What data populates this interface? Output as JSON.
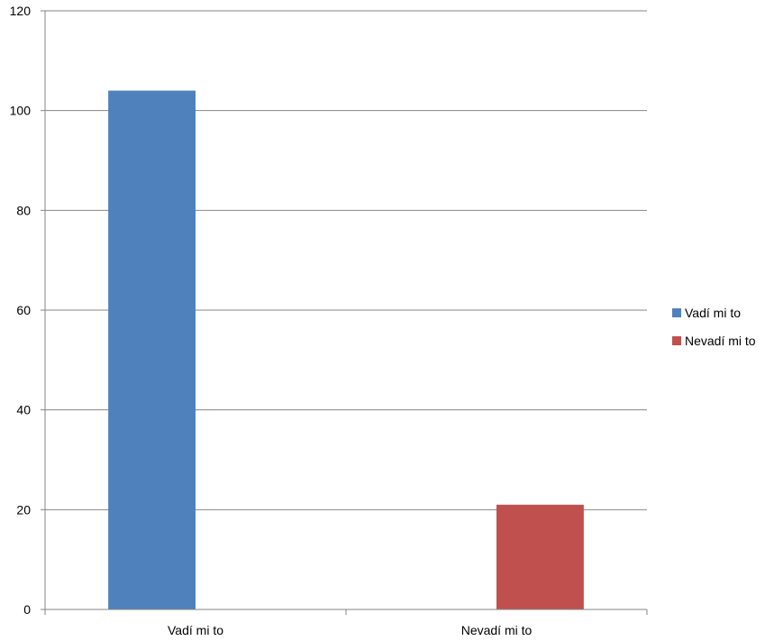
{
  "chart_data": {
    "type": "bar",
    "categories": [
      "Vadí mi to",
      "Nevadí mi to"
    ],
    "series": [
      {
        "name": "Vadí mi to",
        "values": [
          104,
          null
        ],
        "color": "#4F81BD"
      },
      {
        "name": "Nevadí mi to",
        "values": [
          null,
          21
        ],
        "color": "#C0504D"
      }
    ],
    "ylim": [
      0,
      120
    ],
    "yticks": [
      0,
      20,
      40,
      60,
      80,
      100,
      120
    ],
    "grid": true,
    "legend_position": "right"
  }
}
